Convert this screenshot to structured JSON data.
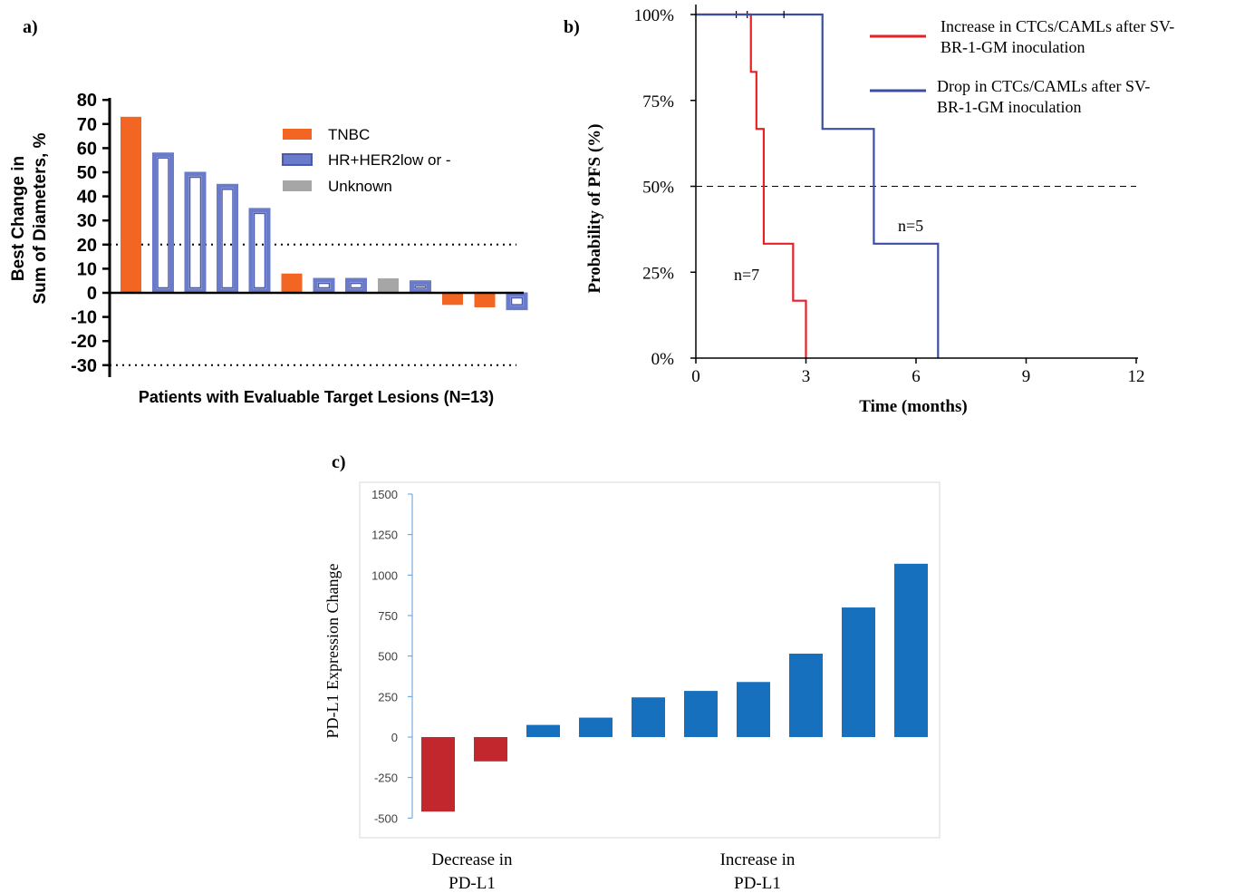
{
  "panels": {
    "a": "a)",
    "b": "b)",
    "c": "c)"
  },
  "colors": {
    "tnbc": "#f26522",
    "hr_her2": "#4a5ab0",
    "hr_her2_fill": "#6a7cc9",
    "unknown": "#a6a6a6",
    "increase_ctc": "#e82127",
    "drop_ctc": "#3a4ea3",
    "pdl1_decrease": "#c1272d",
    "pdl1_increase": "#1770bd",
    "axis_c": "#5b9bd5"
  },
  "chart_data": [
    {
      "type": "bar",
      "panel": "a",
      "ylabel_line1": "Best Change in",
      "ylabel_line2": "Sum of Diameters, %",
      "xlabel": "Patients with Evaluable Target Lesions (N=13)",
      "ylim": [
        -30,
        80
      ],
      "yticks": [
        "80",
        "70",
        "60",
        "50",
        "40",
        "30",
        "20",
        "10",
        "0",
        "-10",
        "-20",
        "-30"
      ],
      "threshold_lines": [
        20,
        -30
      ],
      "legend": [
        "TNBC",
        "HR+HER2low or -",
        "Unknown"
      ],
      "bars": [
        {
          "value": 73,
          "group": "TNBC"
        },
        {
          "value": 58,
          "group": "HR+HER2low or -"
        },
        {
          "value": 50,
          "group": "HR+HER2low or -"
        },
        {
          "value": 45,
          "group": "HR+HER2low or -"
        },
        {
          "value": 35,
          "group": "HR+HER2low or -"
        },
        {
          "value": 8,
          "group": "TNBC"
        },
        {
          "value": 6,
          "group": "HR+HER2low or -"
        },
        {
          "value": 6,
          "group": "HR+HER2low or -"
        },
        {
          "value": 6,
          "group": "Unknown"
        },
        {
          "value": 5,
          "group": "HR+HER2low or -"
        },
        {
          "value": -5,
          "group": "TNBC"
        },
        {
          "value": -6,
          "group": "TNBC"
        },
        {
          "value": -7,
          "group": "HR+HER2low or -"
        }
      ]
    },
    {
      "type": "line",
      "panel": "b",
      "xlabel": "Time (months)",
      "ylabel": "Probability of PFS (%)",
      "xlim": [
        0,
        12
      ],
      "ylim": [
        0,
        100
      ],
      "xticks": [
        "0",
        "3",
        "6",
        "9",
        "12"
      ],
      "yticks": [
        "0%",
        "25%",
        "50%",
        "75%",
        "100%"
      ],
      "median_line": 50,
      "series": [
        {
          "name_line1": "Increase in CTCs/CAMLs after SV-",
          "name_line2": "BR-1-GM inoculation",
          "n_label": "n=7",
          "steps": [
            [
              0,
              100
            ],
            [
              1.5,
              100
            ],
            [
              1.5,
              83.3
            ],
            [
              1.65,
              83.3
            ],
            [
              1.65,
              66.7
            ],
            [
              1.85,
              66.7
            ],
            [
              1.85,
              33.3
            ],
            [
              2.65,
              33.3
            ],
            [
              2.65,
              16.7
            ],
            [
              3.0,
              16.7
            ],
            [
              3.0,
              0
            ]
          ],
          "censor_marks": [
            [
              1.1,
              100
            ],
            [
              1.4,
              100
            ]
          ]
        },
        {
          "name_line1": "Drop in CTCs/CAMLs after SV-",
          "name_line2": "BR-1-GM inoculation",
          "n_label": "n=5",
          "steps": [
            [
              0,
              100
            ],
            [
              3.45,
              100
            ],
            [
              3.45,
              66.7
            ],
            [
              4.85,
              66.7
            ],
            [
              4.85,
              33.3
            ],
            [
              6.6,
              33.3
            ],
            [
              6.6,
              0
            ]
          ],
          "censor_marks": [
            [
              2.4,
              100
            ]
          ]
        }
      ]
    },
    {
      "type": "bar",
      "panel": "c",
      "ylabel": "PD-L1 Expression Change",
      "ylim": [
        -500,
        1500
      ],
      "yticks": [
        "1500",
        "1250",
        "1000",
        "750",
        "500",
        "250",
        "0",
        "-250",
        "-500"
      ],
      "group_labels": [
        {
          "line1": "Decrease in",
          "line2": "PD-L1"
        },
        {
          "line1": "Increase in",
          "line2": "PD-L1"
        }
      ],
      "values": [
        -460,
        -150,
        75,
        120,
        245,
        285,
        340,
        515,
        800,
        1070
      ]
    }
  ]
}
